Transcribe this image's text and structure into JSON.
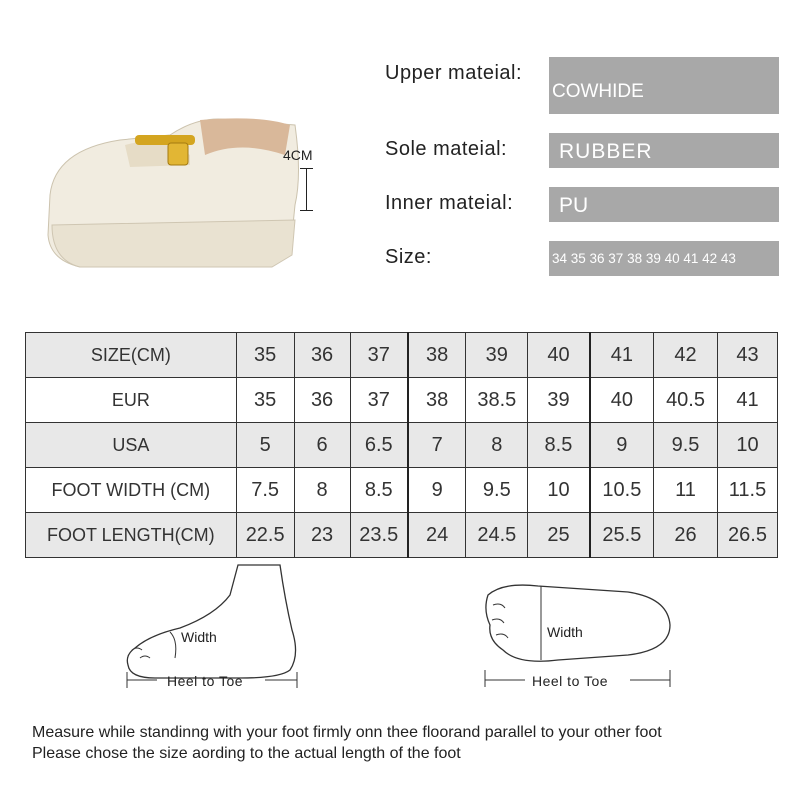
{
  "product": {
    "height_label": "4CM",
    "colors": {
      "shoe": "#f1ece0",
      "buckle": "#d4a520",
      "box": "#a8a8a8"
    }
  },
  "specs": [
    {
      "label": "Upper mateial:",
      "value": "COWHIDE"
    },
    {
      "label": "Sole mateial:",
      "value": "RUBBER"
    },
    {
      "label": "Inner mateial:",
      "value": "PU"
    },
    {
      "label": "Size:",
      "value": "34 35 36 37 38 39 40 41 42 43"
    }
  ],
  "table": {
    "rows": [
      {
        "label": "SIZE(CM)",
        "values": [
          "35",
          "36",
          "37",
          "38",
          "39",
          "40",
          "41",
          "42",
          "43"
        ]
      },
      {
        "label": "EUR",
        "values": [
          "35",
          "36",
          "37",
          "38",
          "38.5",
          "39",
          "40",
          "40.5",
          "41"
        ]
      },
      {
        "label": "USA",
        "values": [
          "5",
          "6",
          "6.5",
          "7",
          "8",
          "8.5",
          "9",
          "9.5",
          "10"
        ]
      },
      {
        "label": "FOOT WIDTH (CM)",
        "values": [
          "7.5",
          "8",
          "8.5",
          "9",
          "9.5",
          "10",
          "10.5",
          "11",
          "11.5"
        ]
      },
      {
        "label": "FOOT LENGTH(CM)",
        "values": [
          "22.5",
          "23",
          "23.5",
          "24",
          "24.5",
          "25",
          "25.5",
          "26",
          "26.5"
        ]
      }
    ]
  },
  "diagrams": {
    "side": {
      "width_label": "Width",
      "length_label": "Heel to Toe"
    },
    "sole": {
      "width_label": "Width",
      "length_label": "Heel to Toe"
    }
  },
  "notes": [
    "Measure while standinng with your foot firmly onn thee floorand parallel to your other foot",
    "Please chose the size aording to the actual length of the foot"
  ]
}
